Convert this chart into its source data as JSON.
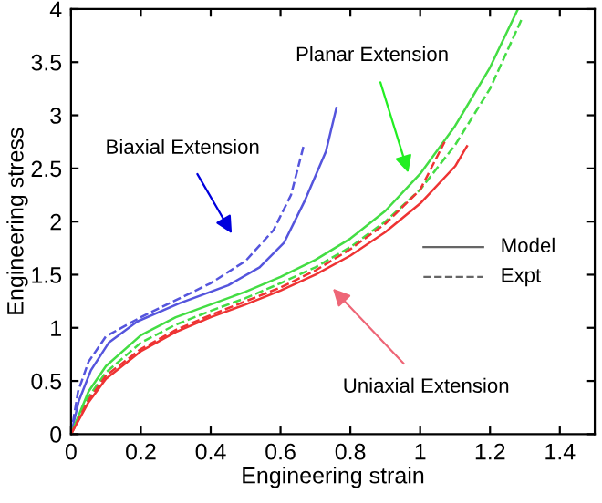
{
  "chart_data": {
    "type": "line",
    "xlabel": "Engineering strain",
    "ylabel": "Engineering stress",
    "xlim": [
      0,
      1.5
    ],
    "ylim": [
      0,
      4
    ],
    "xticks": [
      0,
      0.2,
      0.4,
      0.6,
      0.8,
      1,
      1.2,
      1.4
    ],
    "yticks": [
      0,
      0.5,
      1,
      1.5,
      2,
      2.5,
      3,
      3.5,
      4
    ],
    "grid": false,
    "series": [
      {
        "color": "#5555dd",
        "line_style": "solid",
        "x": [
          0,
          0.022,
          0.057,
          0.108,
          0.19,
          0.31,
          0.45,
          0.54,
          0.61,
          0.67,
          0.73,
          0.76
        ],
        "values": [
          0,
          0.31,
          0.6,
          0.86,
          1.06,
          1.23,
          1.4,
          1.57,
          1.8,
          2.2,
          2.66,
          3.07
        ]
      },
      {
        "color": "#5555dd",
        "line_style": "dashed",
        "x": [
          0,
          0.02,
          0.05,
          0.1,
          0.2,
          0.3,
          0.4,
          0.5,
          0.58,
          0.63,
          0.666
        ],
        "values": [
          0,
          0.4,
          0.68,
          0.92,
          1.1,
          1.26,
          1.42,
          1.63,
          1.92,
          2.25,
          2.71
        ]
      },
      {
        "color": "#44dd44",
        "line_style": "solid",
        "x": [
          0,
          0.05,
          0.1,
          0.2,
          0.3,
          0.4,
          0.5,
          0.6,
          0.7,
          0.8,
          0.9,
          1.0,
          1.1,
          1.2,
          1.28
        ],
        "values": [
          0,
          0.4,
          0.64,
          0.93,
          1.1,
          1.22,
          1.34,
          1.48,
          1.64,
          1.84,
          2.1,
          2.45,
          2.9,
          3.45,
          4.0
        ]
      },
      {
        "color": "#44dd44",
        "line_style": "dashed",
        "x": [
          0,
          0.05,
          0.1,
          0.2,
          0.3,
          0.4,
          0.5,
          0.6,
          0.7,
          0.8,
          0.9,
          1.0,
          1.1,
          1.2,
          1.29
        ],
        "values": [
          0,
          0.35,
          0.58,
          0.86,
          1.03,
          1.16,
          1.28,
          1.42,
          1.57,
          1.76,
          2.0,
          2.3,
          2.72,
          3.25,
          3.9
        ]
      },
      {
        "color": "#ee3333",
        "line_style": "solid",
        "x": [
          0,
          0.05,
          0.1,
          0.2,
          0.3,
          0.4,
          0.5,
          0.6,
          0.7,
          0.8,
          0.9,
          1.0,
          1.1,
          1.134
        ],
        "values": [
          0,
          0.3,
          0.52,
          0.78,
          0.96,
          1.1,
          1.22,
          1.35,
          1.5,
          1.68,
          1.9,
          2.17,
          2.52,
          2.71
        ]
      },
      {
        "color": "#ee3333",
        "line_style": "dashed",
        "x": [
          0,
          0.05,
          0.1,
          0.2,
          0.3,
          0.4,
          0.5,
          0.6,
          0.7,
          0.8,
          0.9,
          1.0,
          1.07
        ],
        "values": [
          0,
          0.32,
          0.55,
          0.8,
          0.98,
          1.12,
          1.25,
          1.38,
          1.54,
          1.74,
          1.98,
          2.3,
          2.75
        ]
      }
    ],
    "annotations": [
      "Biaxial Extension",
      "Planar Extension",
      "Uniaxial Extension",
      "Model",
      "Expt"
    ]
  }
}
